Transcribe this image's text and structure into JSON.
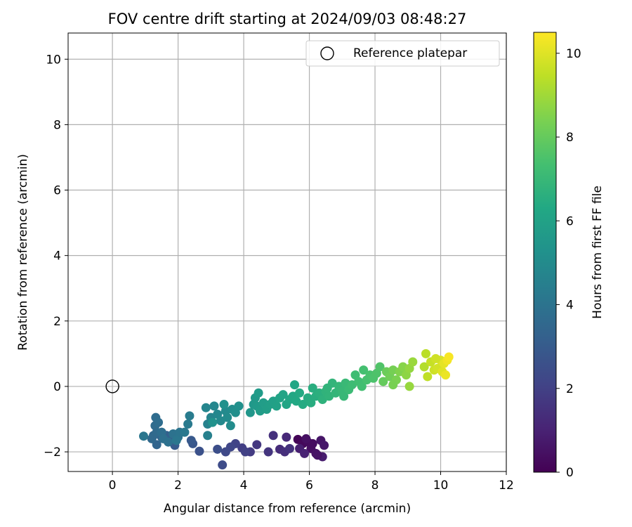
{
  "chart_data": {
    "type": "scatter",
    "title": "FOV centre drift starting at 2024/09/03 08:48:27",
    "xlabel": "Angular distance from reference (arcmin)",
    "ylabel": "Rotation from reference (arcmin)",
    "xlim": [
      -1.35,
      12.0
    ],
    "ylim": [
      -2.6,
      10.8
    ],
    "xticks": [
      0,
      2,
      4,
      6,
      8,
      10,
      12
    ],
    "yticks": [
      -2,
      0,
      2,
      4,
      6,
      8,
      10
    ],
    "grid": true,
    "legend": {
      "position": "top-right",
      "entries": [
        "Reference platepar"
      ]
    },
    "reference": {
      "label": "Reference platepar",
      "x": 0.0,
      "y": 0.0,
      "marker": "open-circle"
    },
    "colorbar": {
      "label": "Hours from first FF file",
      "colormap": "viridis",
      "range": [
        0,
        10.5
      ],
      "ticks": [
        0,
        2,
        4,
        6,
        8,
        10
      ]
    },
    "points": [
      {
        "x": 5.65,
        "y": -1.62,
        "c": 0.1
      },
      {
        "x": 5.8,
        "y": -1.75,
        "c": 0.2
      },
      {
        "x": 5.95,
        "y": -1.7,
        "c": 0.3
      },
      {
        "x": 6.05,
        "y": -1.9,
        "c": 0.4
      },
      {
        "x": 6.2,
        "y": -2.05,
        "c": 0.5
      },
      {
        "x": 6.35,
        "y": -1.65,
        "c": 0.6
      },
      {
        "x": 6.45,
        "y": -1.8,
        "c": 0.7
      },
      {
        "x": 6.4,
        "y": -2.15,
        "c": 0.8
      },
      {
        "x": 5.7,
        "y": -1.9,
        "c": 0.9
      },
      {
        "x": 5.85,
        "y": -2.05,
        "c": 1.0
      },
      {
        "x": 6.1,
        "y": -1.75,
        "c": 0.35
      },
      {
        "x": 5.9,
        "y": -1.6,
        "c": 0.45
      },
      {
        "x": 6.25,
        "y": -2.1,
        "c": 0.55
      },
      {
        "x": 5.1,
        "y": -1.92,
        "c": 1.3
      },
      {
        "x": 5.25,
        "y": -2.0,
        "c": 1.4
      },
      {
        "x": 5.4,
        "y": -1.9,
        "c": 1.5
      },
      {
        "x": 5.3,
        "y": -1.55,
        "c": 1.2
      },
      {
        "x": 4.9,
        "y": -1.5,
        "c": 1.45
      },
      {
        "x": 4.75,
        "y": -2.0,
        "c": 1.6
      },
      {
        "x": 4.4,
        "y": -1.78,
        "c": 1.7
      },
      {
        "x": 4.2,
        "y": -2.0,
        "c": 1.8
      },
      {
        "x": 3.95,
        "y": -1.88,
        "c": 1.9
      },
      {
        "x": 4.05,
        "y": -2.0,
        "c": 2.0
      },
      {
        "x": 3.75,
        "y": -1.75,
        "c": 2.1
      },
      {
        "x": 3.6,
        "y": -1.85,
        "c": 2.2
      },
      {
        "x": 3.45,
        "y": -2.0,
        "c": 2.3
      },
      {
        "x": 3.35,
        "y": -2.4,
        "c": 2.4
      },
      {
        "x": 3.2,
        "y": -1.92,
        "c": 2.5
      },
      {
        "x": 2.65,
        "y": -1.98,
        "c": 2.6
      },
      {
        "x": 2.45,
        "y": -1.75,
        "c": 2.8
      },
      {
        "x": 2.4,
        "y": -1.65,
        "c": 2.9
      },
      {
        "x": 1.9,
        "y": -1.8,
        "c": 3.0
      },
      {
        "x": 1.8,
        "y": -1.6,
        "c": 3.1
      },
      {
        "x": 1.65,
        "y": -1.5,
        "c": 3.2
      },
      {
        "x": 1.5,
        "y": -1.55,
        "c": 3.3
      },
      {
        "x": 1.35,
        "y": -1.78,
        "c": 3.4
      },
      {
        "x": 1.25,
        "y": -1.5,
        "c": 3.5
      },
      {
        "x": 1.2,
        "y": -1.6,
        "c": 3.55
      },
      {
        "x": 1.35,
        "y": -1.4,
        "c": 3.6
      },
      {
        "x": 1.3,
        "y": -1.2,
        "c": 3.65
      },
      {
        "x": 1.32,
        "y": -0.95,
        "c": 3.7
      },
      {
        "x": 1.4,
        "y": -1.1,
        "c": 3.75
      },
      {
        "x": 1.5,
        "y": -1.4,
        "c": 3.8
      },
      {
        "x": 1.55,
        "y": -1.6,
        "c": 3.85
      },
      {
        "x": 1.7,
        "y": -1.7,
        "c": 3.9
      },
      {
        "x": 1.85,
        "y": -1.45,
        "c": 3.95
      },
      {
        "x": 2.0,
        "y": -1.55,
        "c": 4.0
      },
      {
        "x": 2.05,
        "y": -1.4,
        "c": 4.05
      },
      {
        "x": 1.95,
        "y": -1.65,
        "c": 4.1
      },
      {
        "x": 0.95,
        "y": -1.52,
        "c": 4.1
      },
      {
        "x": 2.2,
        "y": -1.4,
        "c": 4.2
      },
      {
        "x": 2.3,
        "y": -1.15,
        "c": 4.3
      },
      {
        "x": 2.35,
        "y": -0.9,
        "c": 4.35
      },
      {
        "x": 2.9,
        "y": -1.5,
        "c": 4.55
      },
      {
        "x": 2.9,
        "y": -1.15,
        "c": 4.6
      },
      {
        "x": 3.0,
        "y": -0.95,
        "c": 4.7
      },
      {
        "x": 2.85,
        "y": -0.65,
        "c": 4.75
      },
      {
        "x": 3.1,
        "y": -0.6,
        "c": 4.8
      },
      {
        "x": 3.2,
        "y": -0.85,
        "c": 4.85
      },
      {
        "x": 3.3,
        "y": -1.05,
        "c": 4.9
      },
      {
        "x": 3.45,
        "y": -0.75,
        "c": 4.95
      },
      {
        "x": 3.5,
        "y": -0.95,
        "c": 5.0
      },
      {
        "x": 3.6,
        "y": -1.2,
        "c": 5.05
      },
      {
        "x": 3.65,
        "y": -0.7,
        "c": 5.1
      },
      {
        "x": 3.75,
        "y": -0.8,
        "c": 5.15
      },
      {
        "x": 3.85,
        "y": -0.6,
        "c": 5.2
      },
      {
        "x": 3.4,
        "y": -0.55,
        "c": 5.25
      },
      {
        "x": 3.05,
        "y": -1.1,
        "c": 5.3
      },
      {
        "x": 4.2,
        "y": -0.8,
        "c": 5.5
      },
      {
        "x": 4.3,
        "y": -0.55,
        "c": 5.55
      },
      {
        "x": 4.35,
        "y": -0.35,
        "c": 5.6
      },
      {
        "x": 4.4,
        "y": -0.6,
        "c": 5.65
      },
      {
        "x": 4.45,
        "y": -0.2,
        "c": 5.7
      },
      {
        "x": 4.5,
        "y": -0.75,
        "c": 5.75
      },
      {
        "x": 4.6,
        "y": -0.5,
        "c": 5.8
      },
      {
        "x": 4.7,
        "y": -0.7,
        "c": 5.85
      },
      {
        "x": 4.8,
        "y": -0.55,
        "c": 5.9
      },
      {
        "x": 4.9,
        "y": -0.45,
        "c": 5.95
      },
      {
        "x": 5.0,
        "y": -0.6,
        "c": 6.0
      },
      {
        "x": 5.1,
        "y": -0.35,
        "c": 6.05
      },
      {
        "x": 5.2,
        "y": -0.25,
        "c": 6.1
      },
      {
        "x": 5.3,
        "y": -0.55,
        "c": 6.15
      },
      {
        "x": 5.4,
        "y": -0.4,
        "c": 6.2
      },
      {
        "x": 5.5,
        "y": -0.3,
        "c": 6.25
      },
      {
        "x": 5.6,
        "y": -0.45,
        "c": 6.3
      },
      {
        "x": 5.7,
        "y": -0.2,
        "c": 6.35
      },
      {
        "x": 5.8,
        "y": -0.55,
        "c": 6.4
      },
      {
        "x": 5.95,
        "y": -0.35,
        "c": 6.45
      },
      {
        "x": 6.05,
        "y": -0.5,
        "c": 6.5
      },
      {
        "x": 6.2,
        "y": -0.3,
        "c": 6.55
      },
      {
        "x": 6.3,
        "y": -0.2,
        "c": 6.6
      },
      {
        "x": 5.55,
        "y": 0.05,
        "c": 6.2
      },
      {
        "x": 6.1,
        "y": -0.05,
        "c": 6.55
      },
      {
        "x": 6.4,
        "y": -0.4,
        "c": 6.7
      },
      {
        "x": 6.5,
        "y": -0.15,
        "c": 6.75
      },
      {
        "x": 6.6,
        "y": -0.3,
        "c": 6.8
      },
      {
        "x": 6.7,
        "y": 0.1,
        "c": 6.85
      },
      {
        "x": 6.8,
        "y": -0.2,
        "c": 6.9
      },
      {
        "x": 6.9,
        "y": 0.0,
        "c": 6.95
      },
      {
        "x": 7.0,
        "y": -0.15,
        "c": 7.0
      },
      {
        "x": 7.1,
        "y": 0.1,
        "c": 7.05
      },
      {
        "x": 7.2,
        "y": -0.1,
        "c": 7.1
      },
      {
        "x": 7.3,
        "y": 0.05,
        "c": 7.15
      },
      {
        "x": 7.4,
        "y": 0.35,
        "c": 7.2
      },
      {
        "x": 7.5,
        "y": 0.15,
        "c": 7.25
      },
      {
        "x": 7.6,
        "y": 0.0,
        "c": 7.3
      },
      {
        "x": 7.65,
        "y": 0.5,
        "c": 7.35
      },
      {
        "x": 7.75,
        "y": 0.2,
        "c": 7.4
      },
      {
        "x": 7.85,
        "y": 0.35,
        "c": 7.45
      },
      {
        "x": 7.95,
        "y": 0.25,
        "c": 7.5
      },
      {
        "x": 8.05,
        "y": 0.4,
        "c": 7.55
      },
      {
        "x": 8.15,
        "y": 0.6,
        "c": 7.6
      },
      {
        "x": 7.05,
        "y": -0.3,
        "c": 7.0
      },
      {
        "x": 6.55,
        "y": -0.05,
        "c": 6.8
      },
      {
        "x": 8.25,
        "y": 0.15,
        "c": 8.0
      },
      {
        "x": 8.35,
        "y": 0.45,
        "c": 8.1
      },
      {
        "x": 8.45,
        "y": 0.3,
        "c": 8.2
      },
      {
        "x": 8.55,
        "y": 0.5,
        "c": 8.3
      },
      {
        "x": 8.65,
        "y": 0.2,
        "c": 8.4
      },
      {
        "x": 8.75,
        "y": 0.45,
        "c": 8.5
      },
      {
        "x": 8.85,
        "y": 0.6,
        "c": 8.6
      },
      {
        "x": 8.95,
        "y": 0.35,
        "c": 8.7
      },
      {
        "x": 9.05,
        "y": 0.55,
        "c": 8.8
      },
      {
        "x": 9.15,
        "y": 0.75,
        "c": 8.9
      },
      {
        "x": 8.55,
        "y": 0.05,
        "c": 8.35
      },
      {
        "x": 9.05,
        "y": 0.0,
        "c": 8.85
      },
      {
        "x": 9.5,
        "y": 0.6,
        "c": 9.3
      },
      {
        "x": 9.55,
        "y": 1.0,
        "c": 9.4
      },
      {
        "x": 9.6,
        "y": 0.3,
        "c": 9.5
      },
      {
        "x": 9.7,
        "y": 0.75,
        "c": 9.6
      },
      {
        "x": 9.8,
        "y": 0.5,
        "c": 9.7
      },
      {
        "x": 9.9,
        "y": 0.55,
        "c": 9.8
      },
      {
        "x": 10.0,
        "y": 0.8,
        "c": 9.9
      },
      {
        "x": 10.05,
        "y": 0.45,
        "c": 10.0
      },
      {
        "x": 10.1,
        "y": 0.7,
        "c": 10.1
      },
      {
        "x": 10.15,
        "y": 0.35,
        "c": 10.2
      },
      {
        "x": 10.2,
        "y": 0.8,
        "c": 10.3
      },
      {
        "x": 10.25,
        "y": 0.9,
        "c": 10.4
      },
      {
        "x": 9.85,
        "y": 0.85,
        "c": 9.75
      }
    ]
  }
}
